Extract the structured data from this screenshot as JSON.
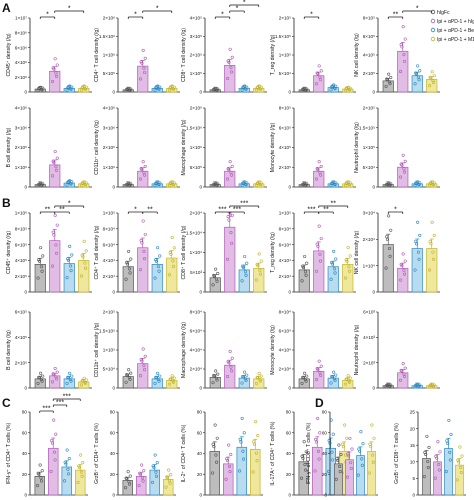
{
  "figure": {
    "panel_letters": [
      "A",
      "B",
      "C",
      "D"
    ]
  },
  "legend": {
    "entries": [
      {
        "label": "hIgFc",
        "color": "#555555",
        "fill": "#bdbdbd"
      },
      {
        "label": "Ipi + αPD-1 + hIgFc",
        "color": "#b15ab8",
        "fill": "#e1bde6"
      },
      {
        "label": "Ipi + αPD-1 + Bela",
        "color": "#2a88c1",
        "fill": "#b7dcf0"
      },
      {
        "label": "Ipi + αPD-1 + M17-2",
        "color": "#c2b42a",
        "fill": "#efe79c"
      }
    ]
  },
  "chart_data": [
    {
      "panel": "A",
      "type": "bar",
      "ylabel": "CD45⁺ density (/g)",
      "yticks": [
        "0",
        "2×10⁶",
        "4×10⁶",
        "6×10⁶",
        "8×10⁶",
        "1×10⁷"
      ],
      "ylim": [
        0,
        10
      ],
      "values": [
        0.4,
        2.8,
        0.5,
        0.5
      ],
      "sig": [
        {
          "a": 0,
          "b": 1,
          "t": "*",
          "lvl": 1
        },
        {
          "a": 1,
          "b": 3,
          "t": "*",
          "lvl": 2
        }
      ]
    },
    {
      "panel": "A",
      "type": "bar",
      "ylabel": "CD4⁺ T cell density (/g)",
      "yticks": [
        "0",
        "5×10⁵",
        "1×10⁶",
        "1.5×10⁶",
        "2×10⁶"
      ],
      "ylim": [
        0,
        10
      ],
      "values": [
        0.3,
        3.5,
        0.5,
        0.5
      ],
      "sig": [
        {
          "a": 0,
          "b": 1,
          "t": "*",
          "lvl": 1
        },
        {
          "a": 1,
          "b": 3,
          "t": "*",
          "lvl": 2
        }
      ]
    },
    {
      "panel": "A",
      "type": "bar",
      "ylabel": "CD8⁺ T cell density (/g)",
      "yticks": [
        "0",
        "1×10⁵",
        "2×10⁵",
        "3×10⁵",
        "4×10⁵"
      ],
      "ylim": [
        0,
        10
      ],
      "values": [
        0.3,
        3.6,
        0.5,
        0.5
      ],
      "sig": [
        {
          "a": 0,
          "b": 1,
          "t": "*",
          "lvl": 1
        },
        {
          "a": 1,
          "b": 2,
          "t": "*",
          "lvl": 2
        },
        {
          "a": 1,
          "b": 3,
          "t": "*",
          "lvl": 3
        }
      ]
    },
    {
      "panel": "A",
      "type": "bar",
      "ylabel": "T_reg density (/g)",
      "yticks": [
        "0",
        "5×10⁴",
        "1×10⁵",
        "1.5×10⁵",
        "2×10⁵"
      ],
      "ylim": [
        0,
        10
      ],
      "values": [
        0.3,
        2.2,
        0.6,
        0.4
      ],
      "sig": [
        {
          "a": 0,
          "b": 1,
          "t": "*",
          "lvl": 1
        }
      ]
    },
    {
      "panel": "A",
      "type": "bar",
      "ylabel": "NK cell density (/g)",
      "yticks": [
        "0",
        "2×10⁵",
        "4×10⁵",
        "6×10⁵",
        "8×10⁵"
      ],
      "ylim": [
        0,
        10
      ],
      "values": [
        1.5,
        5.5,
        2.2,
        1.7
      ],
      "sig": [
        {
          "a": 0,
          "b": 1,
          "t": "**",
          "lvl": 1
        },
        {
          "a": 1,
          "b": 3,
          "t": "*",
          "lvl": 2
        }
      ]
    },
    {
      "panel": "A",
      "type": "bar",
      "ylabel": "B cell density (/g)",
      "yticks": [
        "0",
        "1×10⁶",
        "2×10⁶",
        "3×10⁶",
        "4×10⁶"
      ],
      "ylim": [
        0,
        10
      ],
      "values": [
        0.3,
        2.8,
        0.5,
        0.4
      ],
      "sig": []
    },
    {
      "panel": "A",
      "type": "bar",
      "ylabel": "CD11b⁺ cell density (/g)",
      "yticks": [
        "0",
        "1×10⁶",
        "2×10⁶",
        "3×10⁶",
        "4×10⁶"
      ],
      "ylim": [
        0,
        10
      ],
      "values": [
        0.3,
        2.0,
        0.4,
        0.4
      ],
      "sig": []
    },
    {
      "panel": "A",
      "type": "bar",
      "ylabel": "Macrophage density (/g)",
      "yticks": [
        "0",
        "5×10⁵",
        "1×10⁶",
        "1.5×10⁶",
        "2×10⁶"
      ],
      "ylim": [
        0,
        10
      ],
      "values": [
        0.3,
        2.0,
        0.4,
        0.4
      ],
      "sig": []
    },
    {
      "panel": "A",
      "type": "bar",
      "ylabel": "Monocyte density (/g)",
      "yticks": [
        "0",
        "2×10⁵",
        "4×10⁵",
        "6×10⁵",
        "8×10⁵"
      ],
      "ylim": [
        0,
        10
      ],
      "values": [
        0.3,
        2.0,
        0.4,
        0.4
      ],
      "sig": []
    },
    {
      "panel": "A",
      "type": "bar",
      "ylabel": "Neutrophil density (/g)",
      "yticks": [
        "0",
        "5×10⁴",
        "1×10⁵",
        "1.5×10⁵",
        "2×10⁵"
      ],
      "ylim": [
        0,
        10
      ],
      "values": [
        0.3,
        2.5,
        0.4,
        0.4
      ],
      "sig": []
    },
    {
      "panel": "B",
      "type": "bar",
      "ylabel": "CD45⁺ density (/g)",
      "yticks": [
        "0",
        "2×10⁵",
        "4×10⁵",
        "6×10⁵",
        "8×10⁵",
        "1×10⁶"
      ],
      "ylim": [
        0,
        10
      ],
      "values": [
        3.5,
        6.5,
        3.6,
        4.0
      ],
      "sig": [
        {
          "a": 0,
          "b": 1,
          "t": "**",
          "lvl": 1
        },
        {
          "a": 1,
          "b": 2,
          "t": "**",
          "lvl": 1
        },
        {
          "a": 1,
          "b": 3,
          "t": "*",
          "lvl": 2
        }
      ]
    },
    {
      "panel": "B",
      "type": "bar",
      "ylabel": "CD4⁺ T cell density (/g)",
      "yticks": [
        "0",
        "2×10⁴",
        "4×10⁴",
        "6×10⁴",
        "8×10⁴",
        "1×10⁵"
      ],
      "ylim": [
        0,
        10
      ],
      "values": [
        3.2,
        5.6,
        3.5,
        4.3
      ],
      "sig": [
        {
          "a": 0,
          "b": 1,
          "t": "*",
          "lvl": 1
        },
        {
          "a": 1,
          "b": 2,
          "t": "**",
          "lvl": 1
        }
      ]
    },
    {
      "panel": "B",
      "type": "bar",
      "ylabel": "CD8⁺ T cell density (/g)",
      "yticks": [
        "0",
        "5×10³",
        "1×10⁴",
        "1.5×10⁴",
        "2×10⁴"
      ],
      "ylim": [
        0,
        10
      ],
      "values": [
        1.8,
        8.2,
        2.8,
        3.0
      ],
      "sig": [
        {
          "a": 0,
          "b": 1,
          "t": "***",
          "lvl": 1
        },
        {
          "a": 1,
          "b": 2,
          "t": "***",
          "lvl": 1
        },
        {
          "a": 1,
          "b": 3,
          "t": "***",
          "lvl": 2
        }
      ]
    },
    {
      "panel": "B",
      "type": "bar",
      "ylabel": "T_reg density (/g)",
      "yticks": [
        "0",
        "2×10⁴",
        "4×10⁴",
        "6×10⁴",
        "8×10⁴",
        "1×10⁵"
      ],
      "ylim": [
        0,
        10
      ],
      "values": [
        2.8,
        5.2,
        3.2,
        3.5
      ],
      "sig": [
        {
          "a": 0,
          "b": 1,
          "t": "***",
          "lvl": 1
        },
        {
          "a": 1,
          "b": 2,
          "t": "**",
          "lvl": 1
        },
        {
          "a": 1,
          "b": 3,
          "t": "**",
          "lvl": 2
        }
      ]
    },
    {
      "panel": "B",
      "type": "bar",
      "ylabel": "NK cell density (/g)",
      "yticks": [
        "0",
        "1×10⁴",
        "2×10⁴",
        "3×10⁴"
      ],
      "ylim": [
        0,
        10
      ],
      "values": [
        6.0,
        3.0,
        5.5,
        5.5
      ],
      "sig": [
        {
          "a": 0,
          "b": 1,
          "t": "*",
          "lvl": 1
        }
      ]
    },
    {
      "panel": "B",
      "type": "bar",
      "ylabel": "B cell density (/g)",
      "yticks": [
        "0",
        "2×10⁵",
        "4×10⁵",
        "6×10⁵"
      ],
      "ylim": [
        0,
        10
      ],
      "values": [
        1.2,
        1.6,
        1.2,
        0.8
      ],
      "sig": []
    },
    {
      "panel": "B",
      "type": "bar",
      "ylabel": "CD11b⁺ cell density (/g)",
      "yticks": [
        "0",
        "5×10⁴",
        "1×10⁵",
        "1.5×10⁵",
        "2×10⁵"
      ],
      "ylim": [
        0,
        10
      ],
      "values": [
        1.5,
        3.2,
        1.2,
        1.0
      ],
      "sig": []
    },
    {
      "panel": "B",
      "type": "bar",
      "ylabel": "Macrophage density (/g)",
      "yticks": [
        "0",
        "2×10⁴",
        "4×10⁴",
        "6×10⁴",
        "8×10⁴"
      ],
      "ylim": [
        0,
        10
      ],
      "values": [
        1.4,
        3.0,
        1.3,
        1.2
      ],
      "sig": []
    },
    {
      "panel": "B",
      "type": "bar",
      "ylabel": "Monocyte density (/g)",
      "yticks": [
        "0",
        "2×10⁴",
        "4×10⁴",
        "6×10⁴",
        "8×10⁴"
      ],
      "ylim": [
        0,
        10
      ],
      "values": [
        1.2,
        2.2,
        1.3,
        1.0
      ],
      "sig": []
    },
    {
      "panel": "B",
      "type": "bar",
      "ylabel": "Neutrophil density (/g)",
      "yticks": [
        "0",
        "2×10³",
        "4×10³",
        "6×10³"
      ],
      "ylim": [
        0,
        10
      ],
      "values": [
        0.3,
        2.0,
        0.3,
        0.3
      ],
      "sig": []
    },
    {
      "panel": "C",
      "type": "bar",
      "ylabel": "IFN-γ⁺ of CD4⁺ T cells (%)",
      "yticks": [
        "0",
        "20",
        "40",
        "60",
        "80"
      ],
      "ylim": [
        0,
        80
      ],
      "values": [
        18,
        45,
        27,
        24
      ],
      "sig": [
        {
          "a": 0,
          "b": 1,
          "t": "***",
          "lvl": 1
        },
        {
          "a": 1,
          "b": 2,
          "t": "***",
          "lvl": 2
        },
        {
          "a": 1,
          "b": 3,
          "t": "***",
          "lvl": 3
        }
      ]
    },
    {
      "panel": "C",
      "type": "bar",
      "ylabel": "GrzB⁺ of CD4⁺ T cells (%)",
      "yticks": [
        "0",
        "20",
        "40",
        "60",
        "80"
      ],
      "ylim": [
        0,
        80
      ],
      "values": [
        14,
        18,
        24,
        15
      ],
      "sig": []
    },
    {
      "panel": "C",
      "type": "bar",
      "ylabel": "IL-2⁺ of CD4⁺ T cells (%)",
      "yticks": [
        "0",
        "20",
        "40",
        "60",
        "80"
      ],
      "ylim": [
        0,
        80
      ],
      "values": [
        42,
        30,
        46,
        44
      ],
      "sig": []
    },
    {
      "panel": "C",
      "type": "bar",
      "ylabel": "IL-17A⁺ of CD4⁺ T cells (%)",
      "yticks": [
        "0",
        "20",
        "40",
        "60",
        "80"
      ],
      "ylim": [
        0,
        80
      ],
      "values": [
        32,
        46,
        45,
        42
      ],
      "sig": []
    },
    {
      "panel": "D",
      "type": "bar",
      "ylabel": "IFN-γ⁺ of CD8⁺ T cells (%)",
      "yticks": [
        "0",
        "20",
        "40",
        "60",
        "80"
      ],
      "ylim": [
        0,
        80
      ],
      "values": [
        30,
        34,
        38,
        42
      ],
      "sig": []
    },
    {
      "panel": "D",
      "type": "bar",
      "ylabel": "GrzB⁺ of CD8⁺ T cells (%)",
      "yticks": [
        "0",
        "5",
        "10",
        "15",
        "20",
        "25"
      ],
      "ylim": [
        0,
        25
      ],
      "values": [
        11,
        10,
        14,
        9
      ],
      "sig": []
    }
  ]
}
